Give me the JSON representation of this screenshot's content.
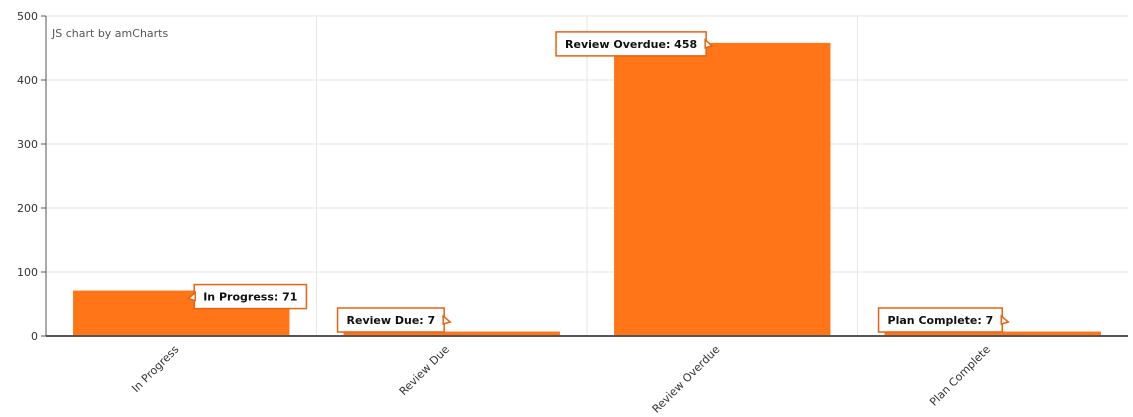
{
  "credit": "JS chart by amCharts",
  "colors": {
    "bar": "#ff7518",
    "balloon_border": "#e8620f",
    "grid": "#e6e6e6",
    "axis": "#555555"
  },
  "chart_data": {
    "type": "bar",
    "categories": [
      "In Progress",
      "Review Due",
      "Review Overdue",
      "Plan Complete"
    ],
    "values": [
      71,
      7,
      458,
      7
    ],
    "balloons": [
      "In Progress: 71",
      "Review Due: 7",
      "Review Overdue: 458",
      "Plan Complete: 7"
    ],
    "ylim": [
      0,
      500
    ],
    "yticks": [
      "0",
      "100",
      "200",
      "300",
      "400",
      "500"
    ],
    "grid": true,
    "title": "",
    "xlabel": "",
    "ylabel": ""
  }
}
